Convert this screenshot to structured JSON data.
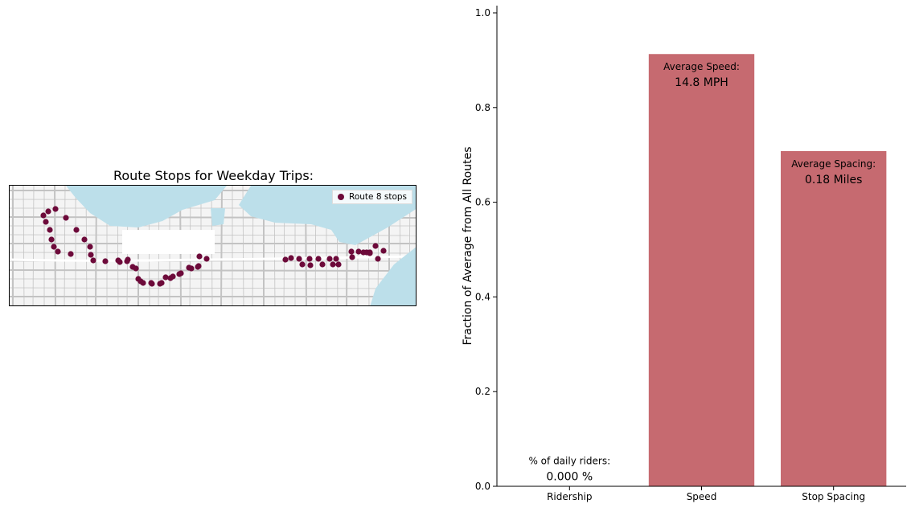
{
  "map": {
    "title": "Route Stops for Weekday Trips:",
    "legend_label": "Route 8 stops",
    "marker_color": "#6d0a3a",
    "water_color": "#bcdfea",
    "road_color": "#c3c3c3"
  },
  "chart_data": {
    "type": "bar",
    "categories": [
      "Ridership",
      "Speed",
      "Stop Spacing"
    ],
    "values": [
      0.0,
      0.913,
      0.708
    ],
    "ylabel": "Fraction of Average from All Routes",
    "xlabel": "",
    "ylim": [
      0,
      1.0
    ],
    "yticks": [
      "0.0",
      "0.2",
      "0.4",
      "0.6",
      "0.8",
      "1.0"
    ],
    "bar_color": "#c66a70",
    "annotations": [
      {
        "label": "% of daily riders:",
        "value": "0.000 %"
      },
      {
        "label": "Average Speed:",
        "value": "14.8 MPH"
      },
      {
        "label": "Average Spacing:",
        "value": "0.18 Miles"
      }
    ]
  }
}
